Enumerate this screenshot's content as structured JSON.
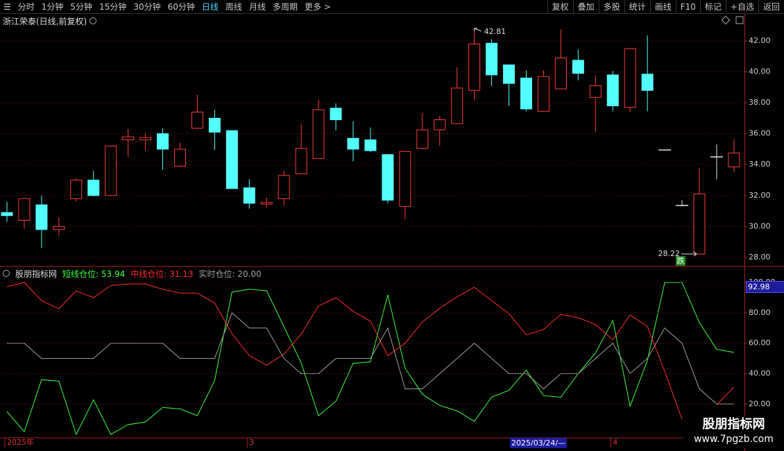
{
  "toolbar": {
    "left": [
      "分时",
      "1分钟",
      "5分钟",
      "15分钟",
      "30分钟",
      "60分钟",
      "日线",
      "周线",
      "月线",
      "多周期",
      "更多 >"
    ],
    "active": "日线",
    "right": [
      "复权",
      "叠加",
      "多股",
      "统计",
      "画线",
      "F10",
      "标记",
      "+自选",
      "返回"
    ]
  },
  "watermark": {
    "title": "股朋指标网",
    "url": "www.7pgzb.com"
  },
  "chart_data": [
    {
      "type": "candlestick",
      "title": "浙江荣泰(日线,前复权)",
      "up_color": "#ff3b3b",
      "down_color": "#54ffff",
      "flat_color": "#e6e6e6",
      "grid": true,
      "ylim": [
        27.46,
        42.85
      ],
      "yticks": [
        {
          "value": 28,
          "label": "28.00"
        },
        {
          "value": 30,
          "label": "30.00"
        },
        {
          "value": 32,
          "label": "32.00"
        },
        {
          "value": 34,
          "label": "34.00"
        },
        {
          "value": 36,
          "label": "36.00"
        },
        {
          "value": 38,
          "label": "38.00"
        },
        {
          "value": 40,
          "label": "40.00"
        },
        {
          "value": 42,
          "label": "42.00"
        }
      ],
      "open": [
        30.9,
        30.4,
        31.4,
        29.8,
        31.8,
        33.0,
        32.0,
        35.6,
        35.6,
        36.0,
        33.9,
        36.35,
        37.0,
        36.2,
        32.5,
        31.45,
        31.8,
        33.4,
        34.4,
        37.65,
        35.7,
        35.6,
        34.65,
        31.3,
        35.05,
        36.25,
        36.65,
        38.8,
        41.85,
        40.45,
        39.6,
        37.45,
        38.9,
        40.75,
        38.35,
        39.8,
        37.7,
        39.85,
        34.95,
        31.35,
        28.22,
        34.5,
        33.85
      ],
      "high": [
        31.6,
        31.8,
        32.0,
        30.6,
        33.1,
        33.6,
        35.2,
        36.3,
        36.0,
        36.35,
        35.4,
        38.5,
        37.55,
        36.2,
        33.05,
        31.85,
        33.6,
        36.6,
        38.2,
        37.95,
        36.8,
        36.4,
        34.65,
        34.85,
        37.3,
        37.15,
        40.3,
        42.81,
        42.1,
        40.45,
        40.1,
        40.1,
        42.75,
        41.45,
        39.8,
        40.05,
        41.5,
        42.35,
        34.95,
        31.7,
        33.8,
        35.3,
        35.65
      ],
      "low": [
        30.3,
        29.85,
        28.6,
        29.4,
        31.6,
        31.95,
        32.0,
        34.5,
        34.9,
        33.65,
        33.85,
        36.3,
        34.95,
        32.45,
        31.15,
        31.2,
        31.35,
        33.4,
        34.4,
        36.2,
        34.2,
        34.8,
        31.5,
        30.45,
        35.0,
        35.2,
        36.65,
        38.15,
        39.1,
        37.8,
        37.45,
        37.45,
        38.9,
        39.45,
        36.1,
        37.45,
        37.4,
        37.45,
        34.95,
        31.35,
        28.22,
        33.05,
        33.5
      ],
      "close": [
        30.7,
        31.8,
        29.8,
        30.0,
        33.0,
        32.0,
        35.2,
        35.8,
        35.75,
        35.0,
        35.0,
        37.4,
        36.1,
        32.45,
        31.5,
        31.55,
        33.3,
        35.05,
        37.55,
        36.9,
        35.0,
        34.9,
        31.7,
        34.85,
        36.25,
        36.9,
        38.95,
        41.8,
        39.8,
        39.25,
        37.6,
        39.7,
        40.9,
        39.9,
        39.1,
        37.8,
        41.5,
        38.8,
        34.95,
        31.35,
        32.1,
        34.5,
        34.75
      ],
      "annotations": [
        {
          "label": "42.81",
          "value": 42.81,
          "at": "high"
        },
        {
          "label": "28.22",
          "value": 28.22,
          "at": "low",
          "badge": "跌"
        }
      ]
    },
    {
      "type": "line",
      "title": "股朋指标网",
      "grid": true,
      "cursor_value": "92.98",
      "cursor_date": "2025/03/24/—",
      "ylim": [
        -1.8,
        101.4
      ],
      "yticks": [
        {
          "value": 20,
          "label": "20.00"
        },
        {
          "value": 40,
          "label": "40.00"
        },
        {
          "value": 60,
          "label": "60.00"
        },
        {
          "value": 80,
          "label": "80.00"
        },
        {
          "value": 100,
          "label": "100.00"
        }
      ],
      "categories": [
        "2025年",
        null,
        null,
        null,
        null,
        null,
        null,
        null,
        null,
        null,
        null,
        null,
        null,
        null,
        "3",
        null,
        null,
        null,
        null,
        null,
        null,
        null,
        null,
        null,
        null,
        null,
        null,
        null,
        null,
        null,
        null,
        null,
        null,
        null,
        null,
        "4",
        null,
        null,
        null,
        null,
        null,
        null,
        null
      ],
      "series": [
        {
          "name": "短线仓位",
          "current": "53.94",
          "color": "#3cff3c",
          "values": [
            15,
            1.8,
            36,
            35,
            0,
            22.7,
            0,
            6.4,
            8.2,
            17.7,
            16.8,
            12.3,
            35.5,
            93.6,
            95.5,
            94.5,
            71,
            47,
            12.3,
            21.8,
            46.8,
            47.7,
            91.8,
            43.6,
            26.4,
            19,
            15.5,
            8.6,
            24.5,
            29,
            42.3,
            25.5,
            24.5,
            40,
            53.6,
            75,
            18.6,
            48.6,
            100,
            100,
            73.6,
            56,
            53.94
          ]
        },
        {
          "name": "中线仓位",
          "current": "31.13",
          "color": "#ff2a2a",
          "values": [
            97.3,
            100,
            88,
            82.7,
            94.5,
            90,
            98,
            99,
            99,
            95.5,
            93,
            93,
            86.4,
            66.4,
            51.8,
            45.5,
            52.7,
            66,
            84.5,
            90,
            81,
            74.5,
            51.8,
            60,
            74,
            83,
            90.5,
            96.8,
            88,
            79.5,
            65.5,
            69,
            79,
            76.8,
            72.3,
            62.3,
            78.6,
            71,
            41.4,
            10,
            null,
            19.5,
            31.13
          ]
        },
        {
          "name": "实时仓位",
          "current": "20.00",
          "color": "#a0a0a0",
          "values": [
            60,
            60,
            50,
            50,
            50,
            50,
            60,
            60,
            60,
            60,
            50,
            50,
            50,
            80,
            70,
            70,
            50,
            40,
            40,
            50,
            50,
            50,
            70,
            30,
            30,
            40,
            50,
            60,
            50,
            40,
            40,
            30,
            40,
            40,
            50,
            60,
            40,
            50,
            70,
            60,
            30,
            20,
            20
          ]
        }
      ]
    }
  ]
}
